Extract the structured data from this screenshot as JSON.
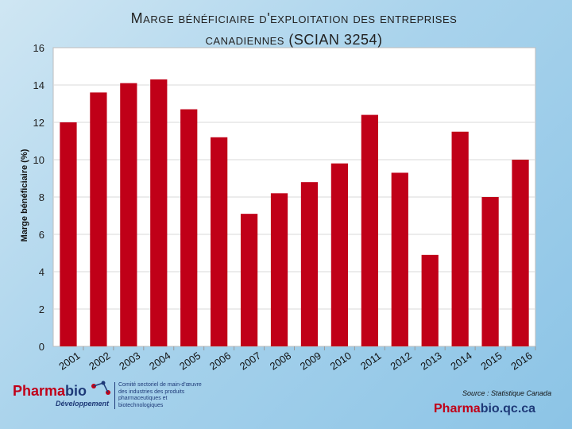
{
  "chart_data": {
    "type": "bar",
    "title_line1": "Marge bénéficiaire d'exploitation  des entreprises",
    "title_line2": "canadiennes (SCIAN 3254)",
    "ylabel": "Marge bénéficiaire (%)",
    "xlabel": "",
    "ylim": [
      0,
      16
    ],
    "yticks": [
      "0",
      "2",
      "4",
      "6",
      "8",
      "10",
      "12",
      "14",
      "16"
    ],
    "categories": [
      "2001",
      "2002",
      "2003",
      "2004",
      "2005",
      "2006",
      "2007",
      "2008",
      "2009",
      "2010",
      "2011",
      "2012",
      "2013",
      "2014",
      "2015",
      "2016"
    ],
    "values": [
      12.0,
      13.6,
      14.1,
      14.3,
      12.7,
      11.2,
      7.1,
      8.2,
      8.8,
      9.8,
      12.4,
      9.3,
      4.9,
      11.5,
      8.0,
      10.0
    ],
    "bar_color": "#c00018",
    "grid": true
  },
  "footer": {
    "logo_part1": "Pharma",
    "logo_part2": "bio",
    "logo_sub": "Développement",
    "logo_tagline": "Comité sectoriel de main-d'œuvre des industries des produits pharmaceutiques et biotechnologiques",
    "source": "Source : Statistique Canada",
    "site_part1": "Pharma",
    "site_part2": "bio.qc.ca"
  }
}
